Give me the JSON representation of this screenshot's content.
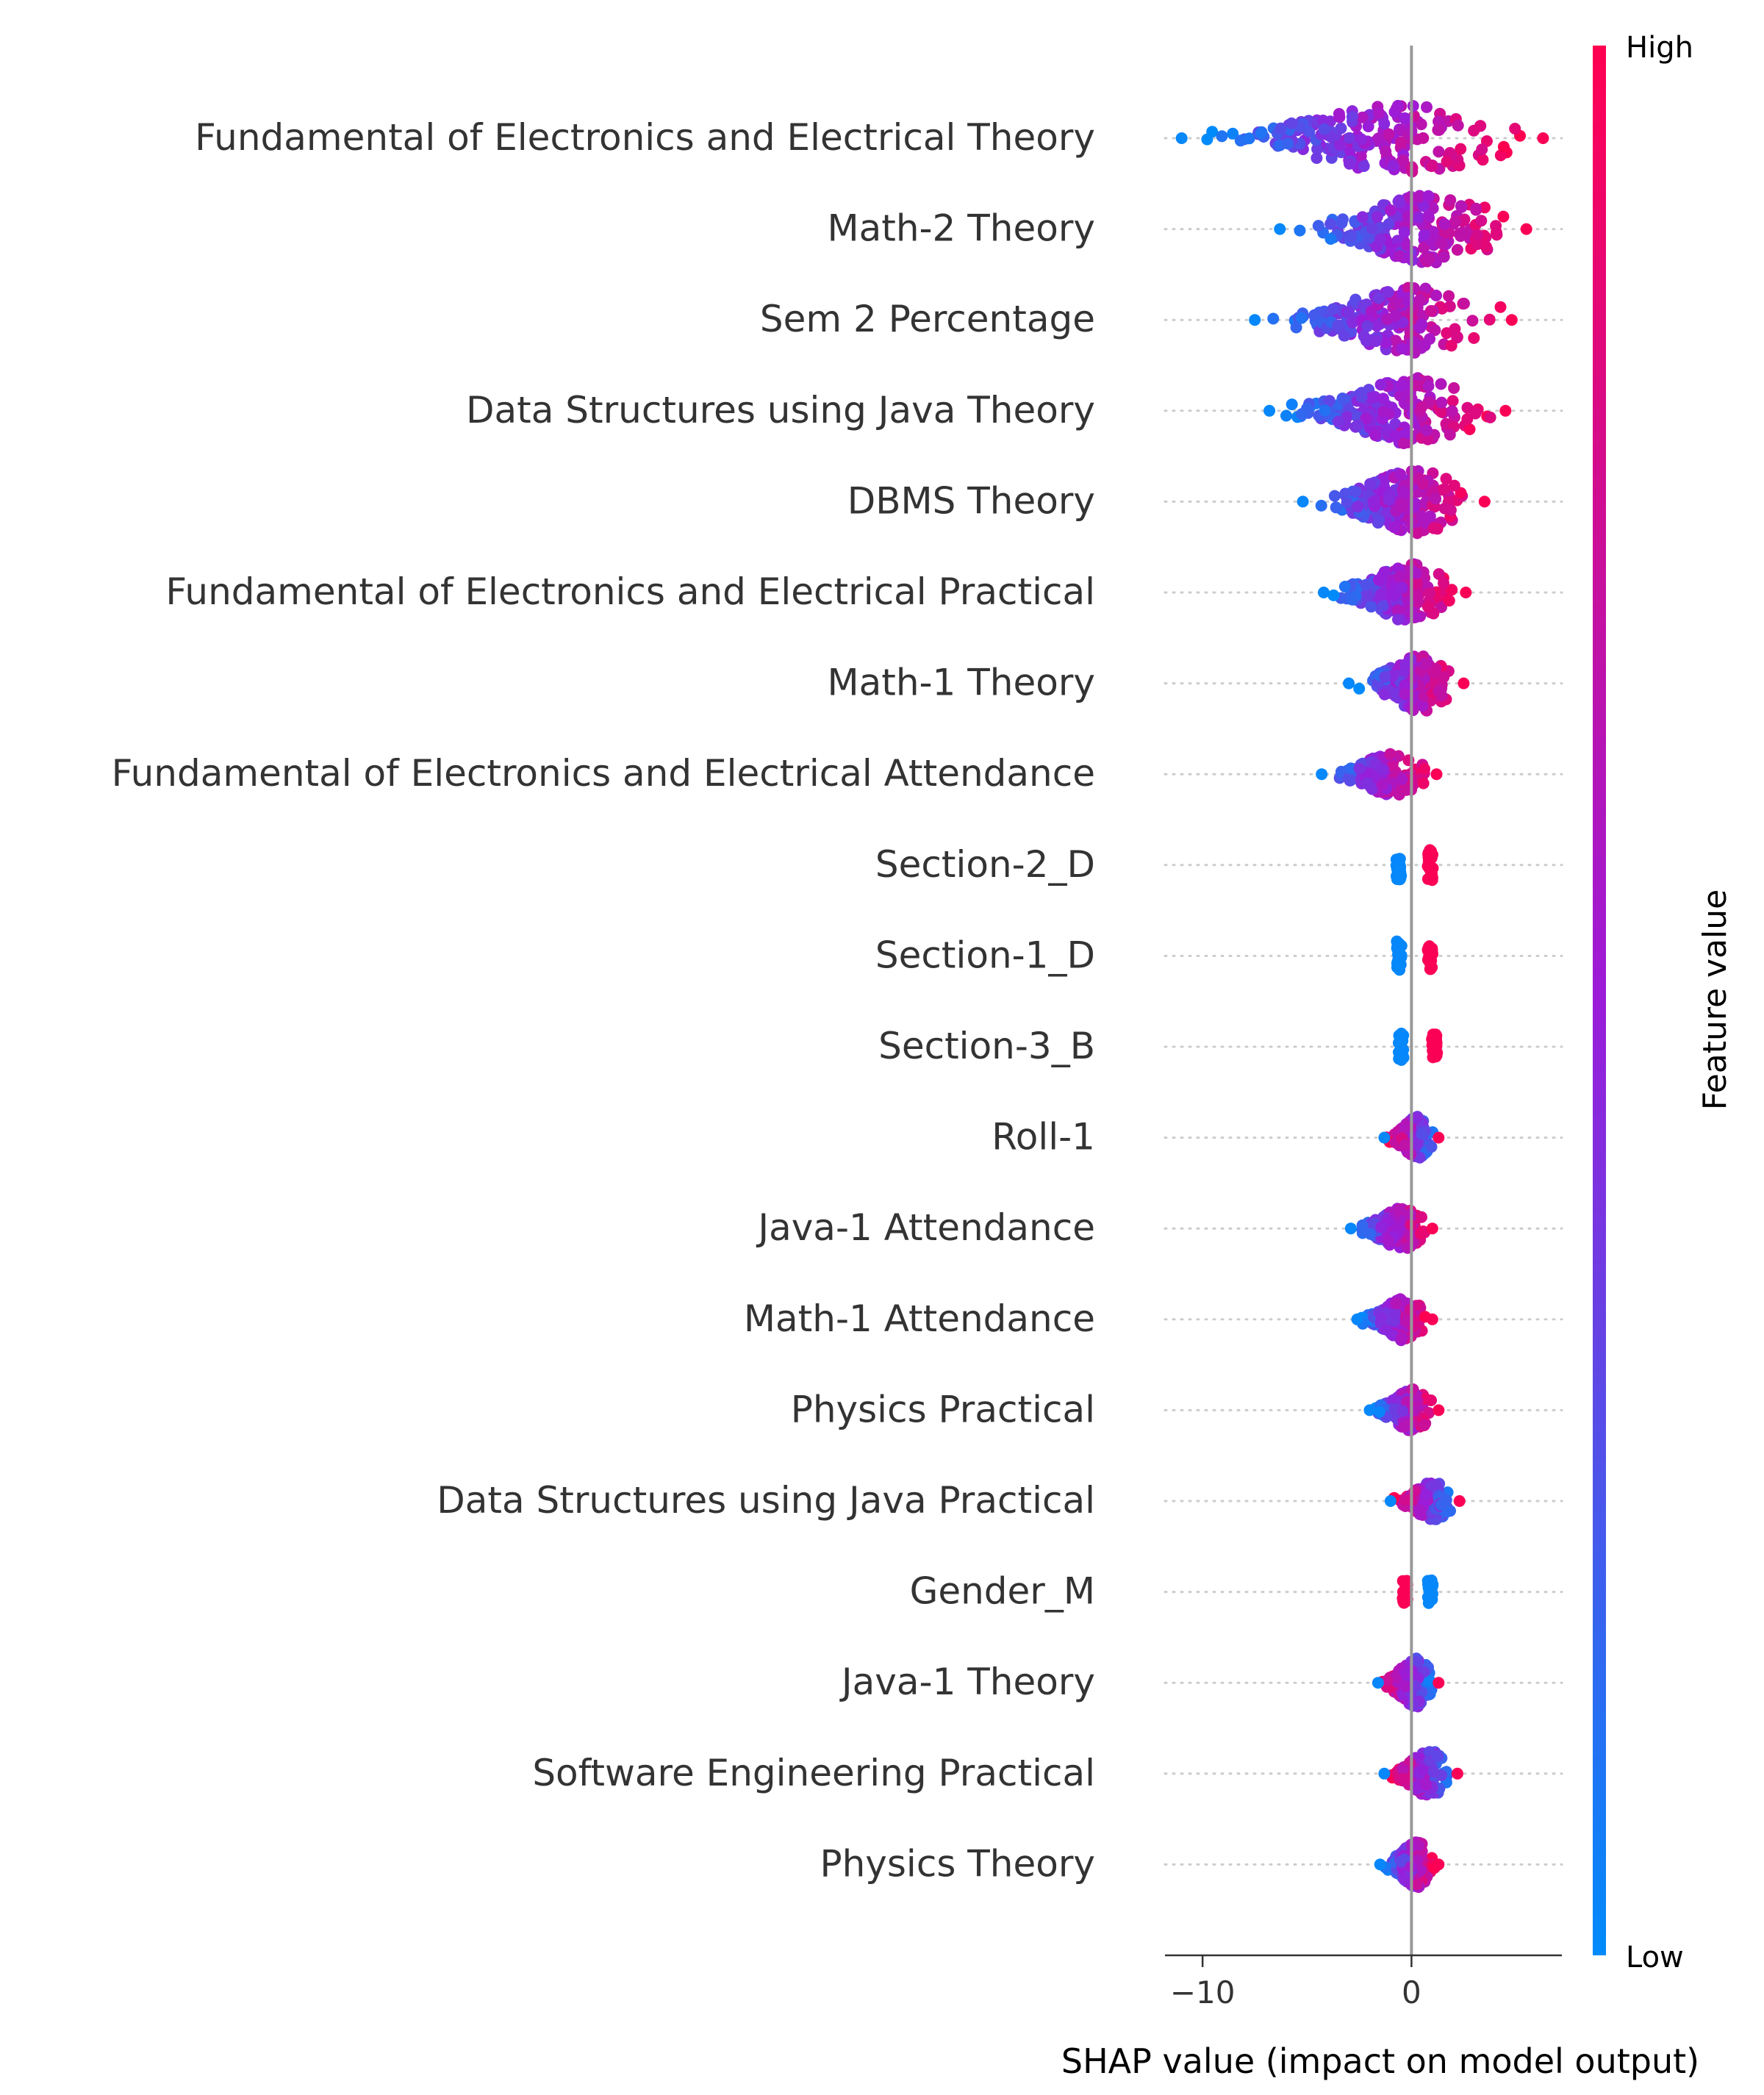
{
  "chart_data": {
    "type": "scatter",
    "subtype": "shap-beeswarm",
    "title": "",
    "xlabel": "SHAP value (impact on model output)",
    "ylabel": "",
    "xlim": [
      -11.8,
      7.2
    ],
    "xticks": [
      {
        "value": -10,
        "label": "−10"
      },
      {
        "value": 0,
        "label": "0"
      }
    ],
    "colorbar": {
      "label": "Feature value",
      "high_label": "High",
      "low_label": "Low",
      "low_color": "#008bfb",
      "high_color": "#ff0051"
    },
    "features": [
      {
        "name": "Fundamental of Electronics and Electrical Theory",
        "min": -11.0,
        "max": 6.3,
        "spread": 1.0
      },
      {
        "name": "Math-2 Theory",
        "min": -6.3,
        "max": 5.5,
        "spread": 1.0
      },
      {
        "name": "Sem 2 Percentage",
        "min": -7.5,
        "max": 4.8,
        "spread": 0.95
      },
      {
        "name": "Data Structures using Java Theory",
        "min": -6.8,
        "max": 4.5,
        "spread": 0.95
      },
      {
        "name": "DBMS Theory",
        "min": -5.2,
        "max": 3.5,
        "spread": 0.9
      },
      {
        "name": "Fundamental of Electronics and Electrical Practical",
        "min": -4.2,
        "max": 2.6,
        "spread": 0.85
      },
      {
        "name": "Math-1 Theory",
        "min": -3.0,
        "max": 2.5,
        "spread": 0.8
      },
      {
        "name": "Fundamental of Electronics and Electrical Attendance",
        "min": -4.3,
        "max": 1.2,
        "spread": 0.6
      },
      {
        "name": "Section-2_D",
        "low_value": -0.6,
        "high_value": 0.9,
        "spread": 0.5
      },
      {
        "name": "Section-1_D",
        "low_value": -0.6,
        "high_value": 0.9,
        "spread": 0.5
      },
      {
        "name": "Section-3_B",
        "low_value": -0.5,
        "high_value": 1.1,
        "spread": 0.45
      },
      {
        "name": "Roll-1",
        "min": -1.3,
        "max": 1.3,
        "spread": 0.6
      },
      {
        "name": "Java-1 Attendance",
        "min": -2.9,
        "max": 1.0,
        "spread": 0.6
      },
      {
        "name": "Math-1 Attendance",
        "min": -2.6,
        "max": 1.0,
        "spread": 0.6
      },
      {
        "name": "Physics Practical",
        "min": -2.0,
        "max": 1.3,
        "spread": 0.6
      },
      {
        "name": "Data Structures using Java Practical",
        "min": -1.0,
        "max": 2.3,
        "spread": 0.55
      },
      {
        "name": "Gender_M",
        "high_value": -0.3,
        "low_value": 0.9,
        "spread": 0.4
      },
      {
        "name": "Java-1 Theory",
        "min": -1.6,
        "max": 1.3,
        "spread": 0.7
      },
      {
        "name": "Software Engineering Practical",
        "min": -1.3,
        "max": 2.2,
        "spread": 0.65
      },
      {
        "name": "Physics Theory",
        "min": -1.5,
        "max": 1.3,
        "spread": 0.65
      }
    ]
  }
}
